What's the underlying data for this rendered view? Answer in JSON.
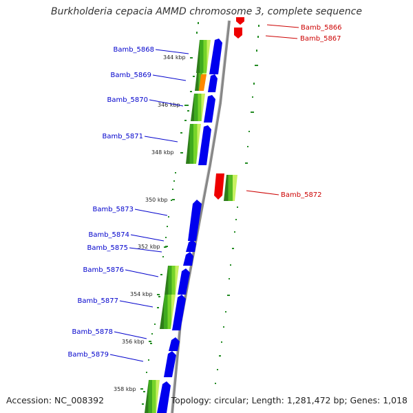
{
  "title": "Burkholderia cepacia AMMD chromosome 3, complete sequence",
  "accession_label": "Accession: NC_008392",
  "summary_label": "Topology: circular; Length: 1,281,472 bp; Genes: 1,018",
  "colors": {
    "forward_label": "#0000cc",
    "reverse_label": "#cc0000",
    "forward_gene": "#0000ee",
    "reverse_gene": "#ee0000",
    "backbone": "#888888",
    "dots": "#228B22"
  },
  "kbp_ticks": [
    "344 kbp",
    "346 kbp",
    "348 kbp",
    "350 kbp",
    "352 kbp",
    "354 kbp",
    "356 kbp",
    "358 kbp"
  ],
  "forward_gene_labels": [
    "Bamb_5868",
    "Bamb_5869",
    "Bamb_5870",
    "Bamb_5871",
    "Bamb_5873",
    "Bamb_5874",
    "Bamb_5875",
    "Bamb_5876",
    "Bamb_5877",
    "Bamb_5878",
    "Bamb_5879"
  ],
  "reverse_gene_labels": [
    "Bamb_5866",
    "Bamb_5867",
    "Bamb_5872"
  ]
}
